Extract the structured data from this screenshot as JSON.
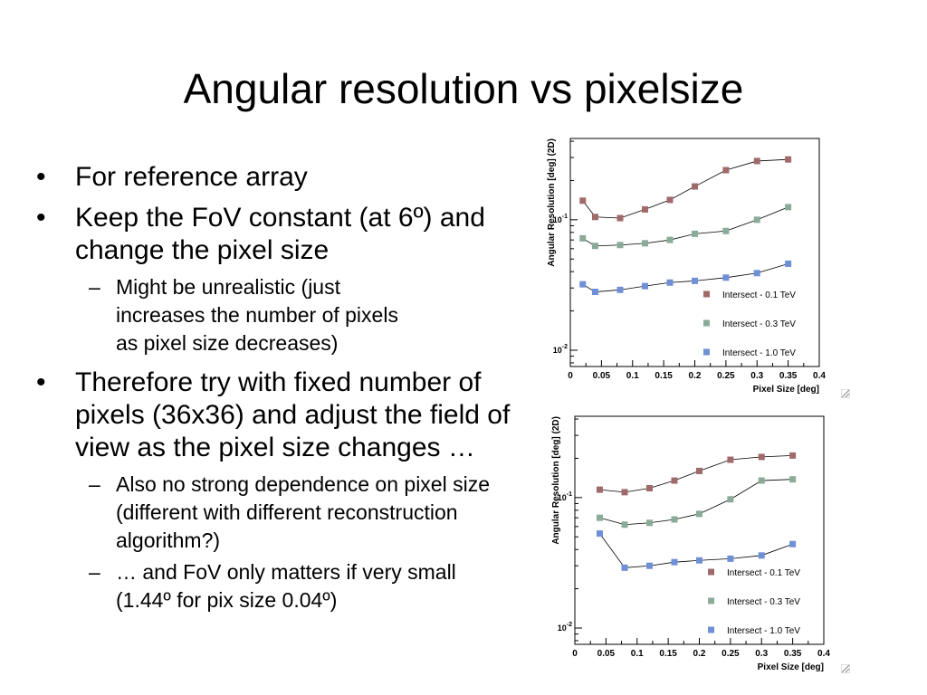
{
  "slide": {
    "title": "Angular resolution vs pixelsize",
    "bullets": [
      {
        "marker": "•",
        "text": "For reference array"
      },
      {
        "marker": "•",
        "text": "Keep the FoV constant (at 6º) and change the pixel size",
        "sub": [
          {
            "marker": "–",
            "text": "Might be unrealistic (just increases the number of pixels as pixel size decreases)"
          }
        ]
      },
      {
        "marker": "•",
        "text": "Therefore try with fixed number of pixels (36x36) and adjust the field of view as the pixel size changes …",
        "sub": [
          {
            "marker": "–",
            "text": "Also no strong dependence on pixel size (different with different reconstruction algorithm?)"
          },
          {
            "marker": "–",
            "text": "… and FoV only matters if very small (1.44º for pix size 0.04º)"
          }
        ]
      }
    ]
  },
  "chart_data": [
    {
      "type": "scatter",
      "xlabel": "Pixel Size [deg]",
      "ylabel": "Angular Resolution [deg] (2D)",
      "x_ticks": [
        "0",
        "0.05",
        "0.1",
        "0.15",
        "0.2",
        "0.25",
        "0.3",
        "0.35",
        "0.4"
      ],
      "y_ticks": [
        "10-1",
        "10-2"
      ],
      "xlim": [
        0,
        0.4
      ],
      "ylim": [
        0.0075,
        0.42
      ],
      "yscale": "log",
      "legend_position": "bottom-right",
      "series": [
        {
          "name": "Intersect - 0.1 TeV",
          "color": "#a06a6a",
          "x": [
            0.02,
            0.04,
            0.08,
            0.12,
            0.16,
            0.2,
            0.25,
            0.3,
            0.35
          ],
          "y": [
            0.14,
            0.105,
            0.103,
            0.12,
            0.142,
            0.18,
            0.24,
            0.282,
            0.29
          ]
        },
        {
          "name": "Intersect - 0.3 TeV",
          "color": "#8aab98",
          "x": [
            0.02,
            0.04,
            0.08,
            0.12,
            0.16,
            0.2,
            0.25,
            0.3,
            0.35
          ],
          "y": [
            0.072,
            0.063,
            0.064,
            0.066,
            0.07,
            0.078,
            0.082,
            0.1,
            0.125
          ]
        },
        {
          "name": "Intersect - 1.0 TeV",
          "color": "#6f8fd6",
          "x": [
            0.02,
            0.04,
            0.08,
            0.12,
            0.16,
            0.2,
            0.25,
            0.3,
            0.35
          ],
          "y": [
            0.032,
            0.028,
            0.029,
            0.031,
            0.033,
            0.034,
            0.036,
            0.039,
            0.046
          ]
        }
      ]
    },
    {
      "type": "scatter",
      "xlabel": "Pixel Size [deg]",
      "ylabel": "Angular Resolution [deg] (2D)",
      "x_ticks": [
        "0",
        "0.05",
        "0.1",
        "0.15",
        "0.2",
        "0.25",
        "0.3",
        "0.35",
        "0.4"
      ],
      "y_ticks": [
        "10-1",
        "10-2"
      ],
      "xlim": [
        0,
        0.4
      ],
      "ylim": [
        0.0075,
        0.42
      ],
      "yscale": "log",
      "legend_position": "bottom-right",
      "series": [
        {
          "name": "Intersect - 0.1 TeV",
          "color": "#a06a6a",
          "x": [
            0.04,
            0.08,
            0.12,
            0.16,
            0.2,
            0.25,
            0.3,
            0.35
          ],
          "y": [
            0.115,
            0.11,
            0.118,
            0.135,
            0.16,
            0.195,
            0.205,
            0.21
          ]
        },
        {
          "name": "Intersect - 0.3 TeV",
          "color": "#8aab98",
          "x": [
            0.04,
            0.08,
            0.12,
            0.16,
            0.2,
            0.25,
            0.3,
            0.35
          ],
          "y": [
            0.07,
            0.062,
            0.064,
            0.068,
            0.075,
            0.097,
            0.135,
            0.138
          ]
        },
        {
          "name": "Intersect - 1.0 TeV",
          "color": "#6f8fd6",
          "x": [
            0.04,
            0.08,
            0.12,
            0.16,
            0.2,
            0.25,
            0.3,
            0.35
          ],
          "y": [
            0.053,
            0.029,
            0.03,
            0.032,
            0.033,
            0.034,
            0.036,
            0.044
          ]
        }
      ]
    }
  ]
}
